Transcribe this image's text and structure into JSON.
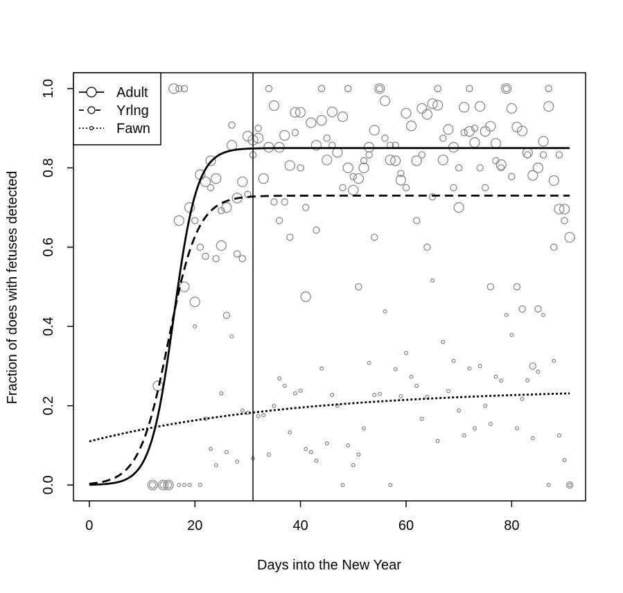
{
  "chart_data": {
    "type": "scatter",
    "xlabel": "Days into the New Year",
    "ylabel": "Fraction of does with fetuses detected",
    "xlim": [
      -3,
      94
    ],
    "ylim": [
      -0.04,
      1.04
    ],
    "x_ticks": [
      0,
      20,
      40,
      60,
      80
    ],
    "y_ticks": [
      0.0,
      0.2,
      0.4,
      0.6,
      0.8,
      1.0
    ],
    "x_tick_labels": [
      "0",
      "20",
      "40",
      "60",
      "80"
    ],
    "y_tick_labels": [
      "0.0",
      "0.2",
      "0.4",
      "0.6",
      "0.8",
      "1.0"
    ],
    "vertical_line_x": 31,
    "legend_position": "top-left",
    "legend": [
      {
        "label": "Adult",
        "line_style": "solid",
        "marker": "large-circle"
      },
      {
        "label": "Yrlng",
        "line_style": "dashed",
        "marker": "medium-circle"
      },
      {
        "label": "Fawn",
        "line_style": "dotted",
        "marker": "small-circle"
      }
    ],
    "curves": [
      {
        "name": "Adult",
        "style": "solid",
        "asymptote": 0.85,
        "midpoint": 16,
        "rate": 0.45,
        "lower": 0.0
      },
      {
        "name": "Yrlng",
        "style": "dashed",
        "asymptote": 0.73,
        "midpoint": 15,
        "rate": 0.36,
        "lower": 0.0
      },
      {
        "name": "Fawn",
        "style": "dotted",
        "start": 0.11,
        "end_asymptote": 0.245,
        "rate": 0.025
      }
    ],
    "series": [
      {
        "name": "Adult",
        "marker_size": "large",
        "points": [
          [
            12,
            0
          ],
          [
            13,
            0.25
          ],
          [
            14,
            0
          ],
          [
            15,
            0
          ],
          [
            16,
            1.0
          ],
          [
            17,
            0.667
          ],
          [
            18,
            0.5
          ],
          [
            19,
            0.7
          ],
          [
            20,
            0.462
          ],
          [
            21,
            0.783
          ],
          [
            22,
            0.765
          ],
          [
            23,
            0.818
          ],
          [
            24,
            0.773
          ],
          [
            25,
            0.604
          ],
          [
            26,
            0.7
          ],
          [
            27,
            0.857
          ],
          [
            28,
            0.724
          ],
          [
            29,
            0.765
          ],
          [
            30,
            0.88
          ],
          [
            31,
            0.87
          ],
          [
            32,
            0.875
          ],
          [
            33,
            0.773
          ],
          [
            34,
            0.852
          ],
          [
            35,
            0.957
          ],
          [
            36,
            0.852
          ],
          [
            37,
            0.882
          ],
          [
            38,
            0.806
          ],
          [
            39,
            0.94
          ],
          [
            40,
            0.94
          ],
          [
            41,
            0.475
          ],
          [
            42,
            0.914
          ],
          [
            43,
            0.857
          ],
          [
            44,
            0.92
          ],
          [
            45,
            0.82
          ],
          [
            46,
            0.941
          ],
          [
            47,
            0.839
          ],
          [
            48,
            0.929
          ],
          [
            49,
            0.8
          ],
          [
            50,
            0.744
          ],
          [
            51,
            0.773
          ],
          [
            52,
            0.8
          ],
          [
            53,
            0.852
          ],
          [
            54,
            0.895
          ],
          [
            55,
            1.0
          ],
          [
            56,
            0.969
          ],
          [
            57,
            0.82
          ],
          [
            58,
            0.818
          ],
          [
            59,
            0.769
          ],
          [
            60,
            0.938
          ],
          [
            61,
            0.906
          ],
          [
            62,
            0.818
          ],
          [
            63,
            0.95
          ],
          [
            64,
            0.935
          ],
          [
            65,
            0.962
          ],
          [
            66,
            0.958
          ],
          [
            67,
            0.82
          ],
          [
            68,
            0.897
          ],
          [
            69,
            0.852
          ],
          [
            70,
            0.7
          ],
          [
            71,
            0.953
          ],
          [
            72,
            0.892
          ],
          [
            73,
            0.864
          ],
          [
            74,
            0.955
          ],
          [
            75,
            0.892
          ],
          [
            76,
            0.905
          ],
          [
            77,
            0.862
          ],
          [
            78,
            0.808
          ],
          [
            79,
            1.0
          ],
          [
            80,
            0.95
          ],
          [
            81,
            0.903
          ],
          [
            82,
            0.893
          ],
          [
            83,
            0.838
          ],
          [
            84,
            0.781
          ],
          [
            85,
            0.8
          ],
          [
            86,
            0.867
          ],
          [
            87,
            0.955
          ],
          [
            88,
            0.768
          ],
          [
            89,
            0.696
          ],
          [
            90,
            0.696
          ],
          [
            91,
            0.625
          ]
        ]
      },
      {
        "name": "Yrlng",
        "marker_size": "medium",
        "points": [
          [
            12,
            0
          ],
          [
            14,
            0
          ],
          [
            15,
            0
          ],
          [
            17,
            1.0
          ],
          [
            18,
            1.0
          ],
          [
            20,
            0.667
          ],
          [
            21,
            0.6
          ],
          [
            22,
            0.577
          ],
          [
            23,
            0.75
          ],
          [
            24,
            0.571
          ],
          [
            25,
            0.692
          ],
          [
            26,
            0.428
          ],
          [
            27,
            0.908
          ],
          [
            28,
            0.583
          ],
          [
            29,
            0.571
          ],
          [
            30,
            0.733
          ],
          [
            31,
            0.833
          ],
          [
            32,
            0.9
          ],
          [
            34,
            1.0
          ],
          [
            35,
            0.714
          ],
          [
            36,
            0.667
          ],
          [
            37,
            0.714
          ],
          [
            38,
            0.625
          ],
          [
            39,
            0.889
          ],
          [
            40,
            0.8
          ],
          [
            41,
            0.7
          ],
          [
            43,
            0.643
          ],
          [
            44,
            1.0
          ],
          [
            45,
            0.875
          ],
          [
            46,
            0.857
          ],
          [
            48,
            0.75
          ],
          [
            49,
            1.0
          ],
          [
            50,
            0.778
          ],
          [
            51,
            0.5
          ],
          [
            52,
            0.818
          ],
          [
            53,
            0.833
          ],
          [
            54,
            0.625
          ],
          [
            55,
            1.0
          ],
          [
            56,
            0.875
          ],
          [
            57,
            0.857
          ],
          [
            58,
            0.857
          ],
          [
            59,
            0.786
          ],
          [
            60,
            0.75
          ],
          [
            62,
            0.667
          ],
          [
            63,
            0.833
          ],
          [
            64,
            0.6
          ],
          [
            65,
            0.727
          ],
          [
            66,
            1.0
          ],
          [
            67,
            0.875
          ],
          [
            69,
            0.75
          ],
          [
            70,
            0.8
          ],
          [
            71,
            0.889
          ],
          [
            72,
            1.0
          ],
          [
            73,
            0.9
          ],
          [
            74,
            0.8
          ],
          [
            75,
            0.75
          ],
          [
            76,
            0.5
          ],
          [
            77,
            0.818
          ],
          [
            78,
            0.8
          ],
          [
            79,
            1.0
          ],
          [
            80,
            0.778
          ],
          [
            81,
            0.5
          ],
          [
            82,
            0.444
          ],
          [
            83,
            0.833
          ],
          [
            84,
            0.3
          ],
          [
            85,
            0.444
          ],
          [
            86,
            0.833
          ],
          [
            87,
            1.0
          ],
          [
            88,
            0.6
          ],
          [
            89,
            0.833
          ],
          [
            90,
            0.667
          ],
          [
            91,
            0
          ]
        ]
      },
      {
        "name": "Fawn",
        "marker_size": "small",
        "points": [
          [
            17,
            0
          ],
          [
            18,
            0
          ],
          [
            19,
            0
          ],
          [
            20,
            0.4
          ],
          [
            21,
            0
          ],
          [
            22,
            0.167
          ],
          [
            23,
            0.091
          ],
          [
            24,
            0.05
          ],
          [
            25,
            0.231
          ],
          [
            26,
            0.083
          ],
          [
            27,
            0.375
          ],
          [
            28,
            0.059
          ],
          [
            29,
            0.188
          ],
          [
            30,
            0.182
          ],
          [
            31,
            0.067
          ],
          [
            32,
            0.174
          ],
          [
            33,
            0.176
          ],
          [
            34,
            0.077
          ],
          [
            35,
            0.2
          ],
          [
            36,
            0.269
          ],
          [
            37,
            0.25
          ],
          [
            38,
            0.133
          ],
          [
            39,
            0.231
          ],
          [
            40,
            0.238
          ],
          [
            41,
            0.091
          ],
          [
            42,
            0.083
          ],
          [
            43,
            0.061
          ],
          [
            44,
            0.294
          ],
          [
            45,
            0.105
          ],
          [
            46,
            0.227
          ],
          [
            47,
            0.2
          ],
          [
            48,
            0
          ],
          [
            49,
            0.1
          ],
          [
            50,
            0.05
          ],
          [
            51,
            0.077
          ],
          [
            52,
            0.143
          ],
          [
            53,
            0.308
          ],
          [
            54,
            0.227
          ],
          [
            55,
            0.23
          ],
          [
            56,
            0.438
          ],
          [
            57,
            0
          ],
          [
            58,
            0.292
          ],
          [
            59,
            0.224
          ],
          [
            60,
            0.333
          ],
          [
            61,
            0.273
          ],
          [
            62,
            0.25
          ],
          [
            63,
            0.167
          ],
          [
            64,
            0.222
          ],
          [
            65,
            0.516
          ],
          [
            66,
            0.111
          ],
          [
            67,
            0.361
          ],
          [
            68,
            0.237
          ],
          [
            69,
            0.313
          ],
          [
            70,
            0.188
          ],
          [
            71,
            0.125
          ],
          [
            72,
            0.294
          ],
          [
            73,
            0.143
          ],
          [
            74,
            0.3
          ],
          [
            75,
            0.2
          ],
          [
            76,
            0.154
          ],
          [
            77,
            0.273
          ],
          [
            78,
            0.263
          ],
          [
            79,
            0.429
          ],
          [
            80,
            0.379
          ],
          [
            81,
            0.143
          ],
          [
            82,
            0.217
          ],
          [
            83,
            0.264
          ],
          [
            84,
            0.118
          ],
          [
            85,
            0.286
          ],
          [
            86,
            0.429
          ],
          [
            87,
            0
          ],
          [
            88,
            0.313
          ],
          [
            89,
            0.125
          ],
          [
            90,
            0.063
          ],
          [
            91,
            0
          ]
        ]
      }
    ]
  },
  "colors": {
    "points": "#8a8a8a",
    "curves": "#000000",
    "axes": "#000000"
  }
}
